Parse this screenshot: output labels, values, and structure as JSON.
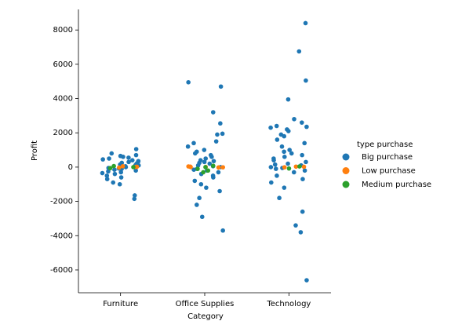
{
  "chart_data": {
    "type": "strip",
    "x_label": "Category",
    "y_label": "Profit",
    "categories": [
      "Furniture",
      "Office Supplies",
      "Technology"
    ],
    "ylim": [
      -7330,
      9200
    ],
    "yticks": [
      -6000,
      -4000,
      -2000,
      0,
      2000,
      4000,
      6000,
      8000
    ],
    "legend_title": "type purchase",
    "legend_position": "right",
    "series": [
      {
        "name": "Big purchase",
        "color": "#1f77b4",
        "x": [
          "Furniture",
          "Furniture",
          "Furniture",
          "Furniture",
          "Furniture",
          "Furniture",
          "Furniture",
          "Furniture",
          "Furniture",
          "Furniture",
          "Furniture",
          "Furniture",
          "Furniture",
          "Furniture",
          "Furniture",
          "Furniture",
          "Furniture",
          "Furniture",
          "Furniture",
          "Furniture",
          "Furniture",
          "Furniture",
          "Furniture",
          "Furniture",
          "Furniture",
          "Furniture",
          "Furniture",
          "Furniture",
          "Furniture",
          "Furniture",
          "Furniture",
          "Furniture",
          "Furniture",
          "Furniture",
          "Furniture",
          "Office Supplies",
          "Office Supplies",
          "Office Supplies",
          "Office Supplies",
          "Office Supplies",
          "Office Supplies",
          "Office Supplies",
          "Office Supplies",
          "Office Supplies",
          "Office Supplies",
          "Office Supplies",
          "Office Supplies",
          "Office Supplies",
          "Office Supplies",
          "Office Supplies",
          "Office Supplies",
          "Office Supplies",
          "Office Supplies",
          "Office Supplies",
          "Office Supplies",
          "Office Supplies",
          "Office Supplies",
          "Office Supplies",
          "Office Supplies",
          "Office Supplies",
          "Office Supplies",
          "Office Supplies",
          "Office Supplies",
          "Office Supplies",
          "Office Supplies",
          "Office Supplies",
          "Office Supplies",
          "Office Supplies",
          "Office Supplies",
          "Office Supplies",
          "Office Supplies",
          "Office Supplies",
          "Office Supplies",
          "Technology",
          "Technology",
          "Technology",
          "Technology",
          "Technology",
          "Technology",
          "Technology",
          "Technology",
          "Technology",
          "Technology",
          "Technology",
          "Technology",
          "Technology",
          "Technology",
          "Technology",
          "Technology",
          "Technology",
          "Technology",
          "Technology",
          "Technology",
          "Technology",
          "Technology",
          "Technology",
          "Technology",
          "Technology",
          "Technology",
          "Technology",
          "Technology",
          "Technology",
          "Technology",
          "Technology",
          "Technology",
          "Technology",
          "Technology",
          "Technology",
          "Technology",
          "Technology",
          "Technology",
          "Technology",
          "Technology",
          "Technology"
        ],
        "values": [
          1050,
          800,
          700,
          600,
          500,
          450,
          400,
          350,
          300,
          250,
          200,
          150,
          100,
          50,
          0,
          -50,
          -100,
          -150,
          -200,
          -250,
          -300,
          -400,
          -500,
          -600,
          -700,
          -900,
          -1000,
          -1650,
          -1850,
          650,
          550,
          300,
          -350,
          120,
          -80,
          4950,
          4700,
          3200,
          2550,
          1950,
          1900,
          1500,
          1400,
          1200,
          1000,
          900,
          800,
          700,
          600,
          500,
          400,
          300,
          200,
          100,
          0,
          -100,
          -200,
          -300,
          -400,
          -500,
          -600,
          -800,
          -1000,
          -1200,
          -1400,
          -1800,
          -2200,
          -2900,
          -3700,
          250,
          -150,
          350,
          50,
          8400,
          6750,
          5050,
          3950,
          2800,
          2600,
          2400,
          2350,
          2300,
          2100,
          1800,
          1600,
          1400,
          1200,
          1000,
          900,
          800,
          700,
          600,
          500,
          400,
          300,
          200,
          100,
          0,
          -100,
          -200,
          -300,
          -500,
          -700,
          -900,
          -1200,
          -1800,
          -2600,
          -3400,
          -3800,
          -6600,
          1900,
          2200,
          150,
          -50
        ]
      },
      {
        "name": "Low purchase",
        "color": "#ff7f0e",
        "x": [
          "Furniture",
          "Furniture",
          "Furniture",
          "Furniture",
          "Office Supplies",
          "Office Supplies",
          "Office Supplies",
          "Office Supplies",
          "Office Supplies",
          "Office Supplies",
          "Technology",
          "Technology",
          "Technology"
        ],
        "values": [
          20,
          -30,
          50,
          10,
          30,
          -20,
          10,
          40,
          0,
          -10,
          20,
          -10,
          30
        ]
      },
      {
        "name": "Medium purchase",
        "color": "#2ca02c",
        "x": [
          "Furniture",
          "Furniture",
          "Furniture",
          "Office Supplies",
          "Office Supplies",
          "Office Supplies",
          "Office Supplies",
          "Office Supplies",
          "Technology",
          "Technology"
        ],
        "values": [
          0,
          -60,
          60,
          -100,
          -200,
          -300,
          80,
          0,
          40,
          -80
        ]
      }
    ]
  }
}
